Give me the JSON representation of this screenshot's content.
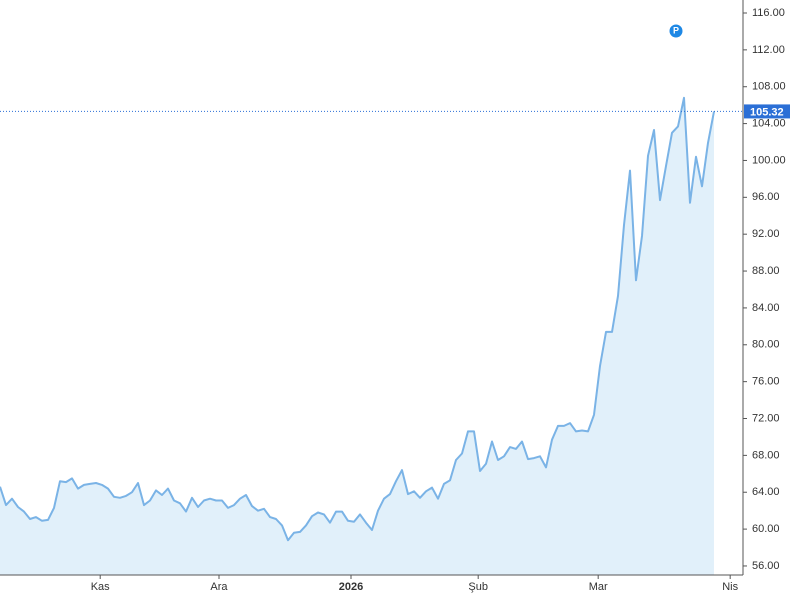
{
  "chart_data": {
    "type": "area",
    "values": [
      64.6,
      62.6,
      63.3,
      62.4,
      61.9,
      61.1,
      61.3,
      60.9,
      61.0,
      62.3,
      65.2,
      65.1,
      65.5,
      64.4,
      64.8,
      64.9,
      65.0,
      64.8,
      64.4,
      63.5,
      63.4,
      63.6,
      64.0,
      65.0,
      62.6,
      63.1,
      64.2,
      63.7,
      64.4,
      63.1,
      62.8,
      61.9,
      63.4,
      62.4,
      63.1,
      63.3,
      63.1,
      63.1,
      62.3,
      62.6,
      63.3,
      63.7,
      62.5,
      62.0,
      62.2,
      61.3,
      61.1,
      60.4,
      58.8,
      59.6,
      59.7,
      60.4,
      61.4,
      61.8,
      61.6,
      60.7,
      61.9,
      61.9,
      60.9,
      60.8,
      61.6,
      60.7,
      59.9,
      62.0,
      63.3,
      63.8,
      65.2,
      66.4,
      63.8,
      64.1,
      63.4,
      64.1,
      64.5,
      63.3,
      64.9,
      65.3,
      67.5,
      68.2,
      70.6,
      70.6,
      66.3,
      67.1,
      69.5,
      67.5,
      67.9,
      68.9,
      68.7,
      69.5,
      67.6,
      67.7,
      67.9,
      66.7,
      69.7,
      71.2,
      71.2,
      71.5,
      70.6,
      70.7,
      70.6,
      72.4,
      77.7,
      81.4,
      81.4,
      85.3,
      93.0,
      98.9,
      87.0,
      91.8,
      100.5,
      103.3,
      95.7,
      99.4,
      103.0,
      103.7,
      106.8,
      95.4,
      100.4,
      97.2,
      101.9,
      105.32
    ],
    "color": "#7ab3e6",
    "fill": "#e1f0fa",
    "xlim": [
      0,
      123.67
    ],
    "xticks": [
      {
        "value": 16.7,
        "label": "Kas"
      },
      {
        "value": 36.5,
        "label": "Ara"
      },
      {
        "value": 58.5,
        "label": "2026"
      },
      {
        "value": 79.7,
        "label": "Şub"
      },
      {
        "value": 99.7,
        "label": "Mar"
      },
      {
        "value": 121.7,
        "label": "Nis"
      }
    ],
    "ylim": [
      55.02,
      117.41
    ],
    "yticks": [
      {
        "value": 56,
        "label": "56.00"
      },
      {
        "value": 60,
        "label": "60.00"
      },
      {
        "value": 64,
        "label": "64.00"
      },
      {
        "value": 68,
        "label": "68.00"
      },
      {
        "value": 72,
        "label": "72.00"
      },
      {
        "value": 76,
        "label": "76.00"
      },
      {
        "value": 80,
        "label": "80.00"
      },
      {
        "value": 84,
        "label": "84.00"
      },
      {
        "value": 88,
        "label": "88.00"
      },
      {
        "value": 92,
        "label": "92.00"
      },
      {
        "value": 96,
        "label": "96.00"
      },
      {
        "value": 100,
        "label": "100.00"
      },
      {
        "value": 104,
        "label": "104.00"
      },
      {
        "value": 108,
        "label": "108.00"
      },
      {
        "value": 112,
        "label": "112.00"
      },
      {
        "value": 116,
        "label": "116.00"
      }
    ],
    "price_line": {
      "value": 105.32,
      "label": "105.32",
      "color": "#2b6fd6"
    },
    "annotation": "P"
  }
}
